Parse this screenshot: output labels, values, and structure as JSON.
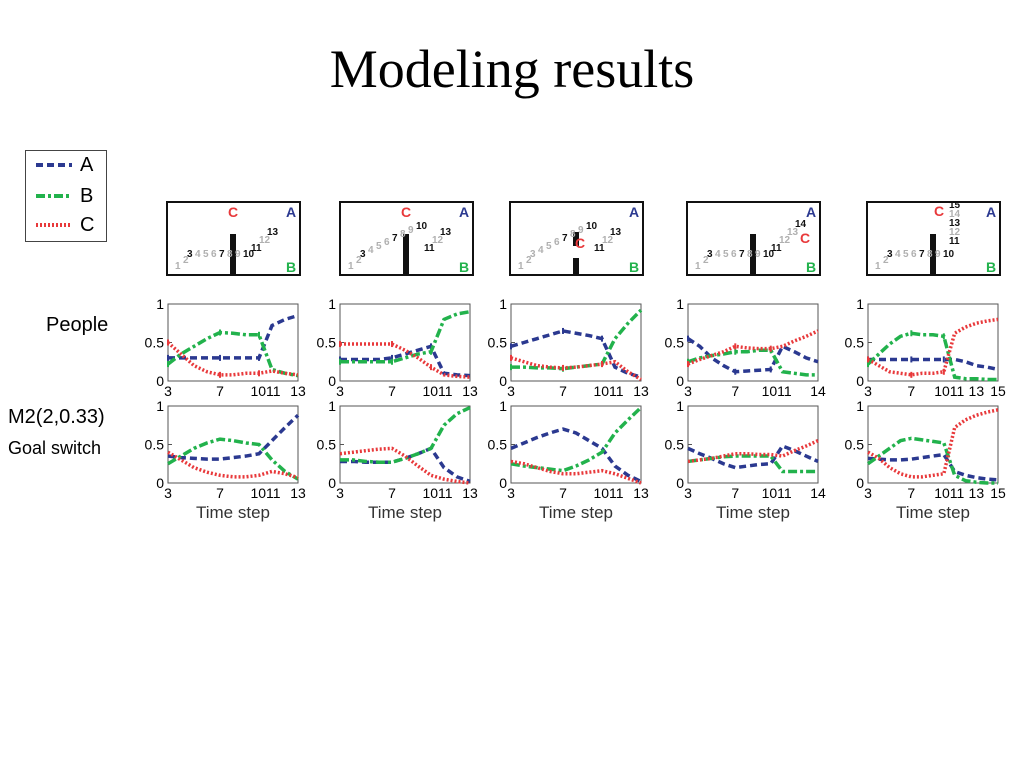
{
  "title": "Modeling results",
  "legend": [
    {
      "name": "A",
      "color": "#2b3990",
      "dash": "7,4"
    },
    {
      "name": "B",
      "color": "#22b24c",
      "dash": "9,3,3,3"
    },
    {
      "name": "C",
      "color": "#e8393b",
      "dash": "2,2"
    }
  ],
  "row_labels": {
    "people": "People",
    "model_line1": "M2(2,0.33)",
    "model_line2": "Goal switch"
  },
  "chart_data": [
    {
      "type": "line",
      "panel": "people-1",
      "xticks": [
        "3",
        "7",
        "1011",
        "13"
      ],
      "xlabel": "",
      "ylim": [
        0,
        1
      ],
      "yticks": [
        "0",
        "0.5",
        "1"
      ],
      "x": [
        3,
        4,
        5,
        6,
        7,
        8,
        9,
        10,
        11,
        12,
        13
      ],
      "series": [
        {
          "name": "A",
          "values": [
            0.3,
            0.3,
            0.3,
            0.3,
            0.3,
            0.3,
            0.3,
            0.3,
            0.72,
            0.8,
            0.85
          ]
        },
        {
          "name": "B",
          "values": [
            0.22,
            0.35,
            0.45,
            0.55,
            0.63,
            0.62,
            0.6,
            0.6,
            0.15,
            0.1,
            0.07
          ]
        },
        {
          "name": "C",
          "values": [
            0.5,
            0.35,
            0.2,
            0.12,
            0.08,
            0.08,
            0.1,
            0.1,
            0.13,
            0.1,
            0.08
          ]
        }
      ]
    },
    {
      "type": "line",
      "panel": "people-2",
      "xticks": [
        "3",
        "7",
        "1011",
        "13"
      ],
      "xlabel": "",
      "ylim": [
        0,
        1
      ],
      "yticks": [
        "0",
        "0.5",
        "1"
      ],
      "x": [
        3,
        4,
        5,
        6,
        7,
        8,
        9,
        10,
        11,
        12,
        13
      ],
      "series": [
        {
          "name": "A",
          "values": [
            0.28,
            0.28,
            0.28,
            0.28,
            0.3,
            0.35,
            0.4,
            0.45,
            0.1,
            0.08,
            0.07
          ]
        },
        {
          "name": "B",
          "values": [
            0.25,
            0.25,
            0.25,
            0.25,
            0.25,
            0.3,
            0.35,
            0.38,
            0.8,
            0.87,
            0.9
          ]
        },
        {
          "name": "C",
          "values": [
            0.48,
            0.48,
            0.48,
            0.48,
            0.48,
            0.4,
            0.3,
            0.18,
            0.08,
            0.06,
            0.05
          ]
        }
      ]
    },
    {
      "type": "line",
      "panel": "people-3",
      "xticks": [
        "3",
        "7",
        "1011",
        "13"
      ],
      "xlabel": "",
      "ylim": [
        0,
        1
      ],
      "yticks": [
        "0",
        "0.5",
        "1"
      ],
      "x": [
        3,
        4,
        5,
        6,
        7,
        8,
        9,
        10,
        11,
        12,
        13
      ],
      "series": [
        {
          "name": "A",
          "values": [
            0.45,
            0.5,
            0.55,
            0.6,
            0.65,
            0.62,
            0.59,
            0.55,
            0.18,
            0.1,
            0.05
          ]
        },
        {
          "name": "B",
          "values": [
            0.18,
            0.18,
            0.17,
            0.17,
            0.16,
            0.18,
            0.2,
            0.22,
            0.55,
            0.75,
            0.92
          ]
        },
        {
          "name": "C",
          "values": [
            0.3,
            0.25,
            0.2,
            0.18,
            0.17,
            0.18,
            0.2,
            0.22,
            0.25,
            0.12,
            0.02
          ]
        }
      ]
    },
    {
      "type": "line",
      "panel": "people-4",
      "xticks": [
        "3",
        "7",
        "1011",
        "14"
      ],
      "xlabel": "",
      "ylim": [
        0,
        1
      ],
      "yticks": [
        "0",
        "0.5",
        "1"
      ],
      "x": [
        3,
        4,
        5,
        6,
        7,
        8,
        9,
        10,
        11,
        12,
        13,
        14
      ],
      "series": [
        {
          "name": "A",
          "values": [
            0.55,
            0.45,
            0.3,
            0.2,
            0.12,
            0.13,
            0.14,
            0.15,
            0.45,
            0.38,
            0.3,
            0.25
          ]
        },
        {
          "name": "B",
          "values": [
            0.25,
            0.3,
            0.33,
            0.35,
            0.38,
            0.38,
            0.4,
            0.4,
            0.12,
            0.1,
            0.08,
            0.08
          ]
        },
        {
          "name": "C",
          "values": [
            0.22,
            0.28,
            0.33,
            0.38,
            0.45,
            0.43,
            0.42,
            0.42,
            0.45,
            0.52,
            0.58,
            0.65
          ]
        }
      ]
    },
    {
      "type": "line",
      "panel": "people-5",
      "xticks": [
        "3",
        "7",
        "1011",
        "13",
        "15"
      ],
      "xlabel": "",
      "ylim": [
        0,
        1
      ],
      "yticks": [
        "0",
        "0.5",
        "1"
      ],
      "x": [
        3,
        4,
        5,
        6,
        7,
        8,
        9,
        10,
        11,
        12,
        13,
        14,
        15
      ],
      "series": [
        {
          "name": "A",
          "values": [
            0.28,
            0.28,
            0.28,
            0.28,
            0.28,
            0.28,
            0.28,
            0.28,
            0.28,
            0.25,
            0.2,
            0.18,
            0.15
          ]
        },
        {
          "name": "B",
          "values": [
            0.22,
            0.35,
            0.48,
            0.58,
            0.62,
            0.6,
            0.6,
            0.58,
            0.05,
            0.03,
            0.03,
            0.02,
            0.02
          ]
        },
        {
          "name": "C",
          "values": [
            0.28,
            0.2,
            0.12,
            0.1,
            0.08,
            0.1,
            0.1,
            0.12,
            0.62,
            0.7,
            0.75,
            0.78,
            0.8
          ]
        }
      ]
    },
    {
      "type": "line",
      "panel": "model-1",
      "xticks": [
        "3",
        "7",
        "1011",
        "13"
      ],
      "xlabel": "Time step",
      "ylim": [
        0,
        1
      ],
      "yticks": [
        "0",
        "0.5",
        "1"
      ],
      "x": [
        3,
        4,
        5,
        6,
        7,
        8,
        9,
        10,
        11,
        12,
        13
      ],
      "series": [
        {
          "name": "A",
          "values": [
            0.35,
            0.33,
            0.32,
            0.31,
            0.31,
            0.33,
            0.35,
            0.38,
            0.55,
            0.72,
            0.88
          ]
        },
        {
          "name": "B",
          "values": [
            0.25,
            0.35,
            0.45,
            0.52,
            0.57,
            0.55,
            0.52,
            0.5,
            0.3,
            0.15,
            0.05
          ]
        },
        {
          "name": "C",
          "values": [
            0.4,
            0.3,
            0.2,
            0.14,
            0.1,
            0.08,
            0.08,
            0.1,
            0.15,
            0.12,
            0.07
          ]
        }
      ]
    },
    {
      "type": "line",
      "panel": "model-2",
      "xticks": [
        "3",
        "7",
        "1011",
        "13"
      ],
      "xlabel": "Time step",
      "ylim": [
        0,
        1
      ],
      "yticks": [
        "0",
        "0.5",
        "1"
      ],
      "x": [
        3,
        4,
        5,
        6,
        7,
        8,
        9,
        10,
        11,
        12,
        13
      ],
      "series": [
        {
          "name": "A",
          "values": [
            0.28,
            0.28,
            0.27,
            0.27,
            0.27,
            0.32,
            0.38,
            0.45,
            0.2,
            0.08,
            0.02
          ]
        },
        {
          "name": "B",
          "values": [
            0.3,
            0.3,
            0.28,
            0.27,
            0.27,
            0.32,
            0.38,
            0.45,
            0.75,
            0.9,
            0.98
          ]
        },
        {
          "name": "C",
          "values": [
            0.38,
            0.4,
            0.42,
            0.44,
            0.45,
            0.35,
            0.22,
            0.1,
            0.05,
            0.02,
            0.0
          ]
        }
      ]
    },
    {
      "type": "line",
      "panel": "model-3",
      "xticks": [
        "3",
        "7",
        "1011",
        "13"
      ],
      "xlabel": "Time step",
      "ylim": [
        0,
        1
      ],
      "yticks": [
        "0",
        "0.5",
        "1"
      ],
      "x": [
        3,
        4,
        5,
        6,
        7,
        8,
        9,
        10,
        11,
        12,
        13
      ],
      "series": [
        {
          "name": "A",
          "values": [
            0.45,
            0.52,
            0.59,
            0.65,
            0.7,
            0.65,
            0.55,
            0.45,
            0.22,
            0.1,
            0.02
          ]
        },
        {
          "name": "B",
          "values": [
            0.25,
            0.22,
            0.2,
            0.18,
            0.16,
            0.22,
            0.3,
            0.4,
            0.65,
            0.82,
            0.98
          ]
        },
        {
          "name": "C",
          "values": [
            0.28,
            0.25,
            0.2,
            0.15,
            0.12,
            0.12,
            0.14,
            0.16,
            0.12,
            0.06,
            0.0
          ]
        }
      ]
    },
    {
      "type": "line",
      "panel": "model-4",
      "xticks": [
        "3",
        "7",
        "1011",
        "14"
      ],
      "xlabel": "Time step",
      "ylim": [
        0,
        1
      ],
      "yticks": [
        "0",
        "0.5",
        "1"
      ],
      "x": [
        3,
        4,
        5,
        6,
        7,
        8,
        9,
        10,
        11,
        12,
        13,
        14
      ],
      "series": [
        {
          "name": "A",
          "values": [
            0.45,
            0.38,
            0.32,
            0.25,
            0.2,
            0.22,
            0.24,
            0.25,
            0.48,
            0.42,
            0.35,
            0.28
          ]
        },
        {
          "name": "B",
          "values": [
            0.28,
            0.3,
            0.32,
            0.34,
            0.35,
            0.35,
            0.35,
            0.35,
            0.15,
            0.15,
            0.15,
            0.15
          ]
        },
        {
          "name": "C",
          "values": [
            0.28,
            0.3,
            0.32,
            0.35,
            0.38,
            0.38,
            0.37,
            0.37,
            0.35,
            0.42,
            0.48,
            0.55
          ]
        }
      ]
    },
    {
      "type": "line",
      "panel": "model-5",
      "xticks": [
        "3",
        "7",
        "1011",
        "13",
        "15"
      ],
      "xlabel": "Time step",
      "ylim": [
        0,
        1
      ],
      "yticks": [
        "0",
        "0.5",
        "1"
      ],
      "x": [
        3,
        4,
        5,
        6,
        7,
        8,
        9,
        10,
        11,
        12,
        13,
        14,
        15
      ],
      "series": [
        {
          "name": "A",
          "values": [
            0.32,
            0.31,
            0.3,
            0.3,
            0.31,
            0.33,
            0.35,
            0.37,
            0.15,
            0.1,
            0.07,
            0.05,
            0.04
          ]
        },
        {
          "name": "B",
          "values": [
            0.25,
            0.35,
            0.45,
            0.55,
            0.58,
            0.56,
            0.54,
            0.52,
            0.1,
            0.03,
            0.01,
            0.0,
            0.0
          ]
        },
        {
          "name": "C",
          "values": [
            0.4,
            0.32,
            0.2,
            0.12,
            0.08,
            0.08,
            0.1,
            0.12,
            0.72,
            0.82,
            0.88,
            0.92,
            0.95
          ]
        }
      ]
    }
  ],
  "mazes": [
    {
      "labels": {
        "A": "A",
        "B": "B",
        "C": "C"
      },
      "steps": [
        {
          "t": "1",
          "g": 1
        },
        {
          "t": "2",
          "g": 1
        },
        {
          "t": "3",
          "g": 0
        },
        {
          "t": "4",
          "g": 1
        },
        {
          "t": "5",
          "g": 1
        },
        {
          "t": "6",
          "g": 1
        },
        {
          "t": "7",
          "g": 0
        },
        {
          "t": "8",
          "g": 1
        },
        {
          "t": "9",
          "g": 1
        },
        {
          "t": "10",
          "g": 0
        },
        {
          "t": "11",
          "g": 0
        },
        {
          "t": "12",
          "g": 1
        },
        {
          "t": "13",
          "g": 0
        }
      ]
    },
    {
      "labels": {
        "A": "A",
        "B": "B",
        "C": "C"
      },
      "steps": [
        {
          "t": "1",
          "g": 1
        },
        {
          "t": "2",
          "g": 1
        },
        {
          "t": "3",
          "g": 0
        },
        {
          "t": "4",
          "g": 1
        },
        {
          "t": "5",
          "g": 1
        },
        {
          "t": "6",
          "g": 1
        },
        {
          "t": "7",
          "g": 0
        },
        {
          "t": "8",
          "g": 1
        },
        {
          "t": "9",
          "g": 1
        },
        {
          "t": "10",
          "g": 0
        },
        {
          "t": "11",
          "g": 0
        },
        {
          "t": "12",
          "g": 1
        },
        {
          "t": "13",
          "g": 0
        }
      ]
    },
    {
      "labels": {
        "A": "A",
        "B": "B",
        "C": "C"
      },
      "steps": [
        {
          "t": "1",
          "g": 1
        },
        {
          "t": "2",
          "g": 1
        },
        {
          "t": "3",
          "g": 1
        },
        {
          "t": "4",
          "g": 1
        },
        {
          "t": "5",
          "g": 1
        },
        {
          "t": "6",
          "g": 1
        },
        {
          "t": "7",
          "g": 0
        },
        {
          "t": "8",
          "g": 1
        },
        {
          "t": "9",
          "g": 1
        },
        {
          "t": "10",
          "g": 0
        },
        {
          "t": "11",
          "g": 0
        },
        {
          "t": "12",
          "g": 1
        },
        {
          "t": "13",
          "g": 0
        }
      ]
    },
    {
      "labels": {
        "A": "A",
        "B": "B",
        "C": "C"
      },
      "steps": [
        {
          "t": "1",
          "g": 1
        },
        {
          "t": "2",
          "g": 1
        },
        {
          "t": "3",
          "g": 0
        },
        {
          "t": "4",
          "g": 1
        },
        {
          "t": "5",
          "g": 1
        },
        {
          "t": "6",
          "g": 1
        },
        {
          "t": "7",
          "g": 0
        },
        {
          "t": "8",
          "g": 1
        },
        {
          "t": "9",
          "g": 1
        },
        {
          "t": "10",
          "g": 0
        },
        {
          "t": "11",
          "g": 0
        },
        {
          "t": "12",
          "g": 1
        },
        {
          "t": "13",
          "g": 1
        },
        {
          "t": "14",
          "g": 0
        }
      ]
    },
    {
      "labels": {
        "A": "A",
        "B": "B",
        "C": "C"
      },
      "steps": [
        {
          "t": "1",
          "g": 1
        },
        {
          "t": "2",
          "g": 1
        },
        {
          "t": "3",
          "g": 0
        },
        {
          "t": "4",
          "g": 1
        },
        {
          "t": "5",
          "g": 1
        },
        {
          "t": "6",
          "g": 1
        },
        {
          "t": "7",
          "g": 0
        },
        {
          "t": "8",
          "g": 1
        },
        {
          "t": "9",
          "g": 1
        },
        {
          "t": "10",
          "g": 0
        },
        {
          "t": "11",
          "g": 0
        },
        {
          "t": "12",
          "g": 1
        },
        {
          "t": "13",
          "g": 0
        },
        {
          "t": "14",
          "g": 1
        },
        {
          "t": "15",
          "g": 0
        }
      ]
    }
  ]
}
